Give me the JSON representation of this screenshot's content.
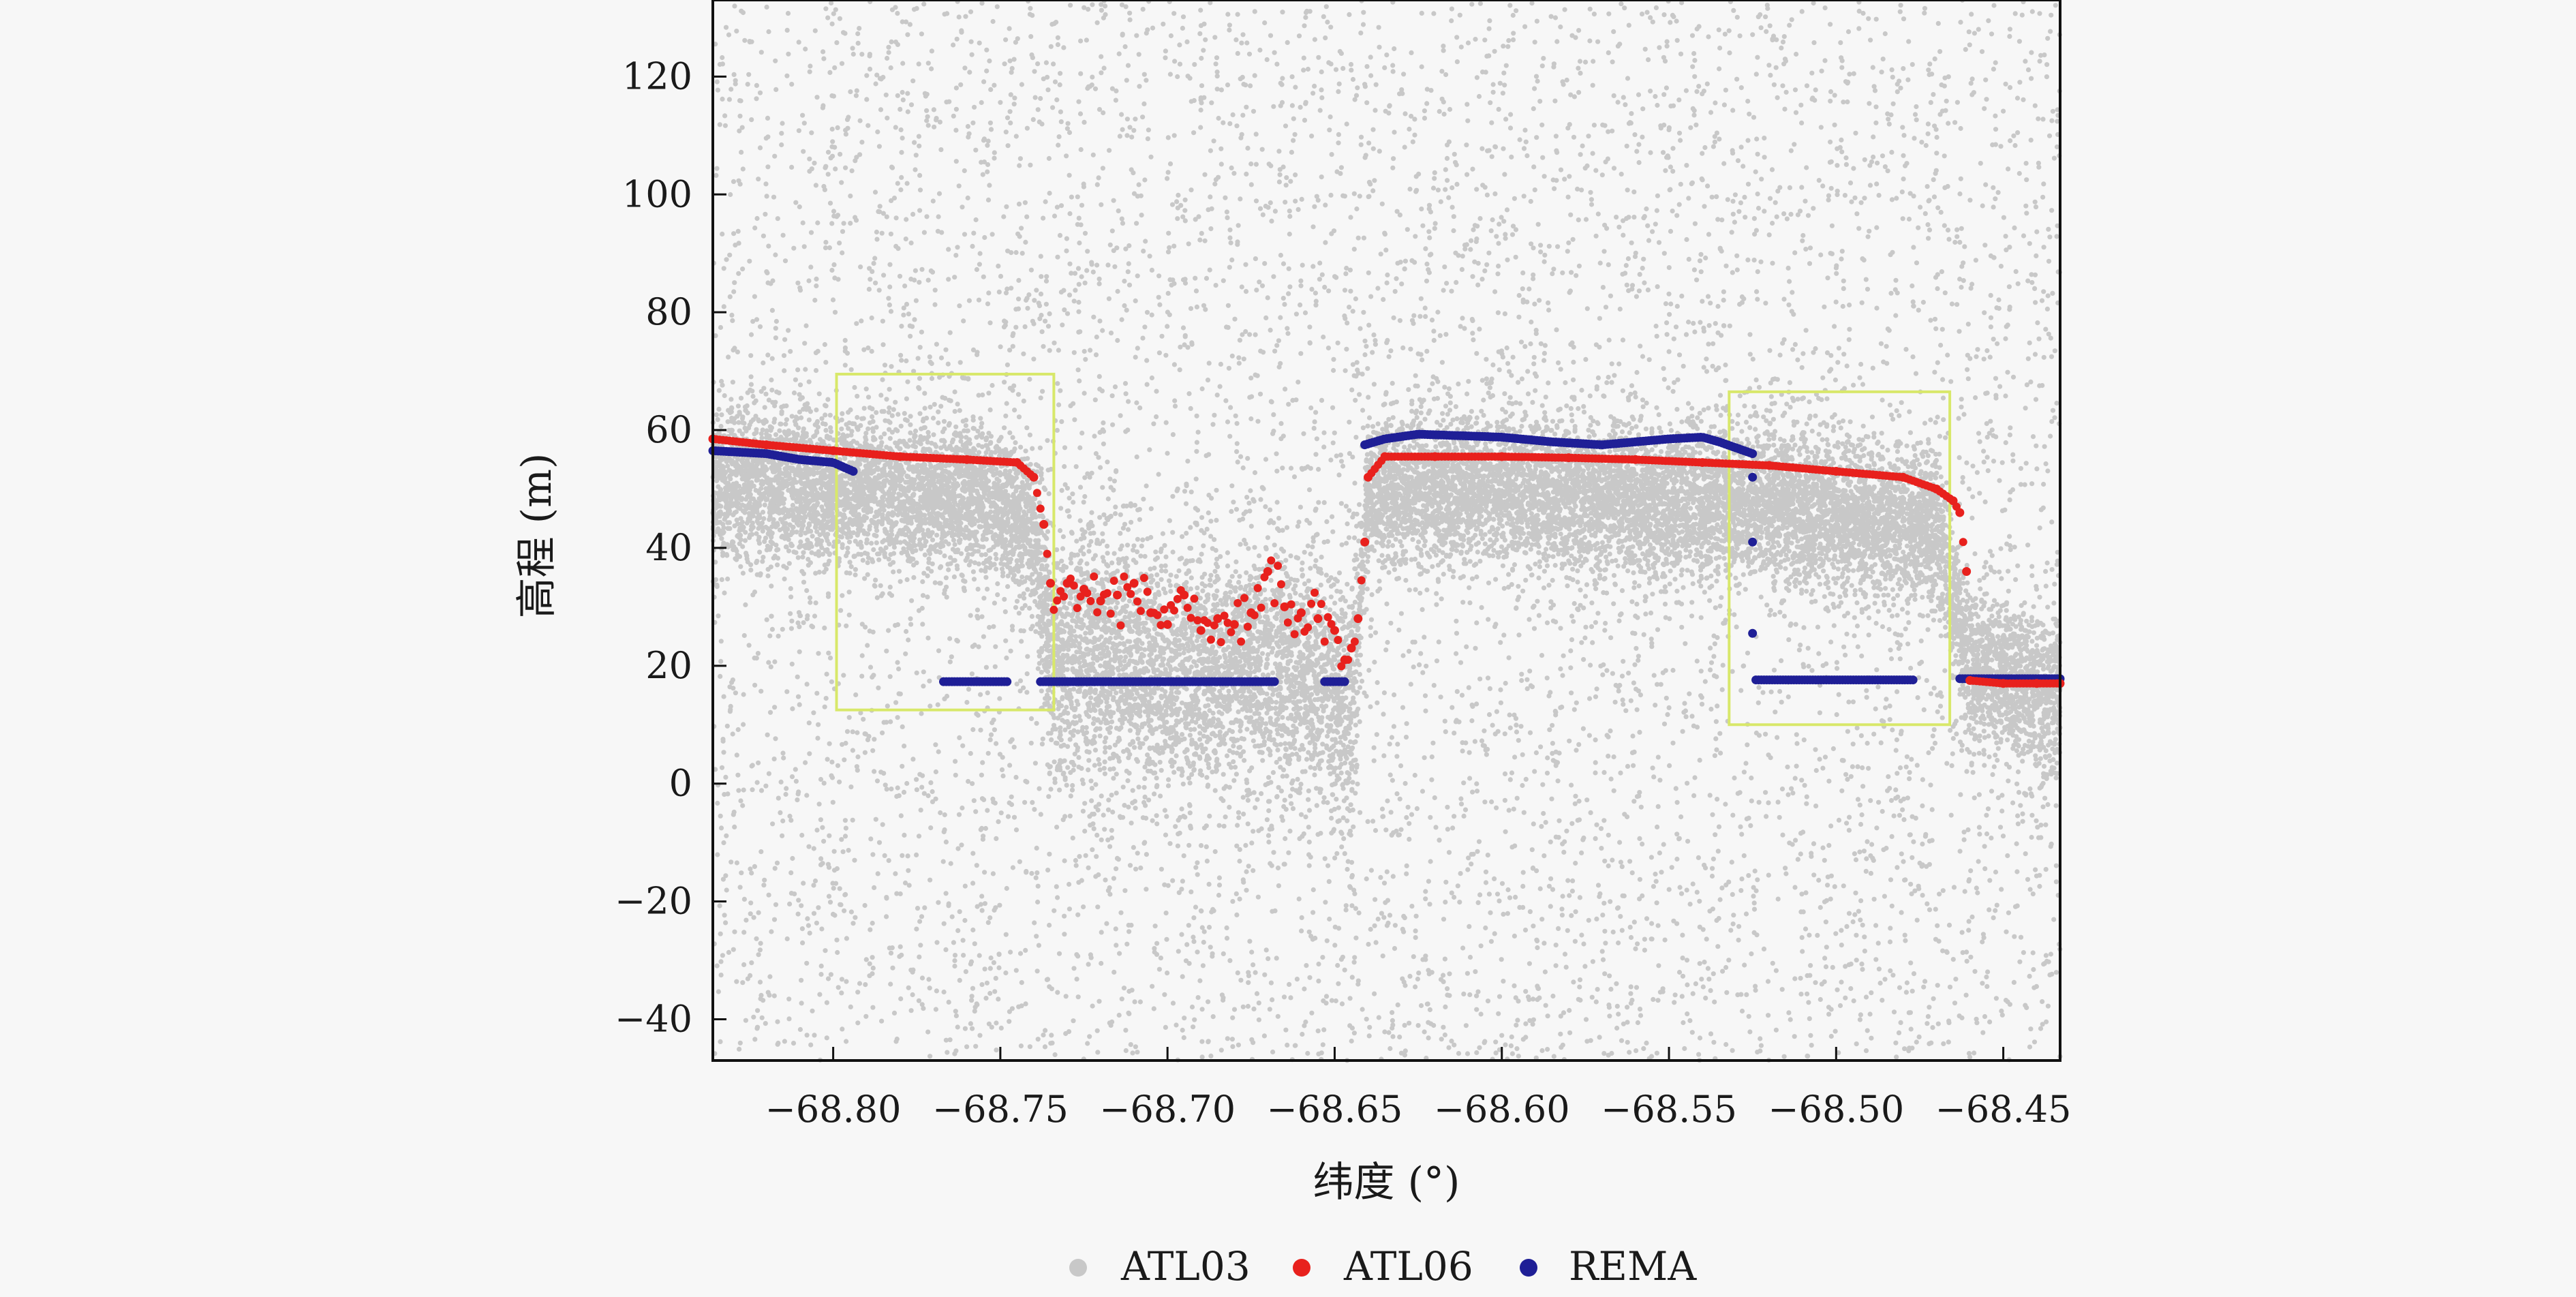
{
  "chart_data": {
    "type": "scatter",
    "title": "",
    "xlabel": "纬度 (°)",
    "ylabel": "高程 (m)",
    "xlim": [
      -68.836,
      -68.433
    ],
    "ylim": [
      -47,
      133
    ],
    "x_ticks": [
      -68.8,
      -68.75,
      -68.7,
      -68.65,
      -68.6,
      -68.55,
      -68.5,
      -68.45
    ],
    "x_tick_labels": [
      "−68.80",
      "−68.75",
      "−68.70",
      "−68.65",
      "−68.60",
      "−68.55",
      "−68.50",
      "−68.45"
    ],
    "y_ticks": [
      -40,
      -20,
      0,
      20,
      40,
      60,
      80,
      100,
      120
    ],
    "y_tick_labels": [
      "−40",
      "−20",
      "0",
      "20",
      "40",
      "60",
      "80",
      "100",
      "120"
    ],
    "grid": false,
    "legend_position": "bottom-center",
    "series": [
      {
        "name": "ATL03",
        "color": "#c8c8c8",
        "marker": "dot",
        "description_points": "dense photon cloud; concentrated band around the surface, sparse noise over full range",
        "x": [
          -68.836,
          -68.81,
          -68.78,
          -68.75,
          -68.74,
          -68.735,
          -68.72,
          -68.7,
          -68.68,
          -68.66,
          -68.645,
          -68.64,
          -68.62,
          -68.6,
          -68.57,
          -68.55,
          -68.52,
          -68.5,
          -68.47,
          -68.46,
          -68.44
        ],
        "y": [
          54,
          53,
          52,
          50,
          45,
          25,
          25,
          22,
          23,
          24,
          15,
          52,
          52,
          52,
          51,
          50,
          50,
          48,
          46,
          22,
          18
        ]
      },
      {
        "name": "ATL06",
        "color": "#e8211d",
        "marker": "dot",
        "x": [
          -68.836,
          -68.82,
          -68.8,
          -68.78,
          -68.76,
          -68.745,
          -68.74,
          -68.737,
          -68.735,
          -68.73,
          -68.725,
          -68.72,
          -68.715,
          -68.71,
          -68.705,
          -68.7,
          -68.695,
          -68.69,
          -68.685,
          -68.68,
          -68.675,
          -68.67,
          -68.665,
          -68.66,
          -68.655,
          -68.65,
          -68.647,
          -68.645,
          -68.643,
          -68.641,
          -68.64,
          -68.635,
          -68.62,
          -68.6,
          -68.58,
          -68.56,
          -68.54,
          -68.52,
          -68.5,
          -68.48,
          -68.47,
          -68.465,
          -68.463,
          -68.461,
          -68.46,
          -68.45,
          -68.44,
          -68.433
        ],
        "y": [
          58.5,
          57.5,
          56.5,
          55.5,
          55,
          54.5,
          52,
          44,
          34,
          34,
          33,
          31,
          32,
          34,
          29,
          27,
          32,
          26,
          28,
          27,
          29,
          36,
          30,
          29,
          28,
          26,
          21,
          23,
          28,
          41,
          52,
          55.5,
          55.5,
          55.5,
          55.3,
          55,
          54.5,
          54,
          53,
          52,
          50,
          48,
          46,
          36,
          17.5,
          17,
          17,
          17
        ]
      },
      {
        "name": "REMA",
        "color": "#1f1f96",
        "marker": "dot",
        "segments": [
          {
            "x": [
              -68.836,
              -68.82,
              -68.81,
              -68.8,
              -68.794
            ],
            "y": [
              56.5,
              56,
              55,
              54.5,
              53
            ]
          },
          {
            "x": [
              -68.767,
              -68.757,
              -68.748
            ],
            "y": [
              17.3,
              17.3,
              17.3
            ]
          },
          {
            "x": [
              -68.738,
              -68.72,
              -68.7,
              -68.68,
              -68.668
            ],
            "y": [
              17.3,
              17.3,
              17.3,
              17.3,
              17.3
            ]
          },
          {
            "x": [
              -68.653,
              -68.65,
              -68.647
            ],
            "y": [
              17.3,
              17.3,
              17.3
            ]
          },
          {
            "x": [
              -68.641,
              -68.635,
              -68.625,
              -68.61,
              -68.6,
              -68.585,
              -68.57,
              -68.56,
              -68.55,
              -68.54,
              -68.535,
              -68.53,
              -68.525
            ],
            "y": [
              57.5,
              58.5,
              59.3,
              59,
              58.8,
              58,
              57.5,
              58,
              58.5,
              58.8,
              58,
              57,
              56
            ]
          },
          {
            "x": [
              -68.525,
              -68.525,
              -68.525
            ],
            "y": [
              52,
              41,
              25.5
            ]
          },
          {
            "x": [
              -68.524,
              -68.51,
              -68.5,
              -68.49,
              -68.477
            ],
            "y": [
              17.6,
              17.6,
              17.6,
              17.6,
              17.6
            ]
          },
          {
            "x": [
              -68.463,
              -68.455,
              -68.445,
              -68.433
            ],
            "y": [
              17.8,
              17.8,
              17.8,
              17.8
            ]
          }
        ]
      }
    ],
    "annotations": [
      {
        "type": "rectangle",
        "color": "#d8e86a",
        "x": [
          -68.799,
          -68.734
        ],
        "y": [
          12.5,
          69.5
        ]
      },
      {
        "type": "rectangle",
        "color": "#d8e86a",
        "x": [
          -68.532,
          -68.466
        ],
        "y": [
          10,
          66.5
        ]
      }
    ]
  }
}
